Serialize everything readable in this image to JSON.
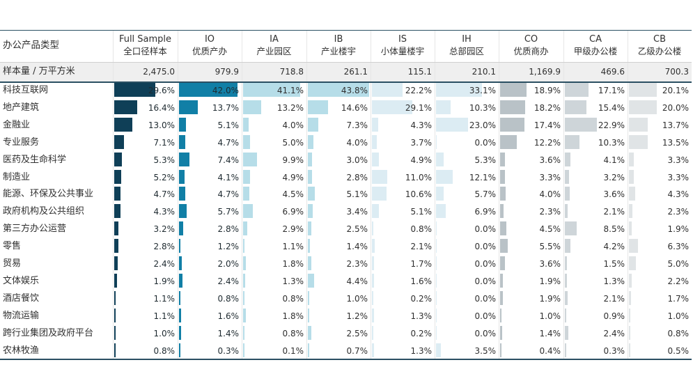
{
  "table": {
    "header": {
      "category_col": "办公产品类型",
      "sample_row_label": "样本量 / 万平方米"
    },
    "colors": {
      "Full Sample": "#0f3f57",
      "IO": "#117fa6",
      "IA": "#b6dde8",
      "IB": "#b6dde8",
      "IS": "#dcecf3",
      "IH": "#dcecf3",
      "CO": "#b9c2c7",
      "CA": "#ced5d9",
      "CB": "#e0e4e6",
      "line_dark": "#2a4f62",
      "sample_bg": "#efefef"
    },
    "columns": [
      {
        "code": "Full Sample",
        "name": "全口径样本",
        "sample": "2,475.0"
      },
      {
        "code": "IO",
        "name": "优质产办",
        "sample": "979.9"
      },
      {
        "code": "IA",
        "name": "产业园区",
        "sample": "718.8"
      },
      {
        "code": "IB",
        "name": "产业楼宇",
        "sample": "261.1"
      },
      {
        "code": "IS",
        "name": "小体量楼宇",
        "sample": "115.1"
      },
      {
        "code": "IH",
        "name": "总部园区",
        "sample": "210.1"
      },
      {
        "code": "CO",
        "name": "优质商办",
        "sample": "1,169.9"
      },
      {
        "code": "CA",
        "name": "甲级办公楼",
        "sample": "469.6"
      },
      {
        "code": "CB",
        "name": "乙级办公楼",
        "sample": "700.3"
      }
    ]
  },
  "chart_data": {
    "type": "table",
    "unit": "%",
    "categories": [
      "科技互联网",
      "地产建筑",
      "金融业",
      "专业服务",
      "医药及生命科学",
      "制造业",
      "能源、环保及公共事业",
      "政府机构及公共组织",
      "第三方办公运营",
      "零售",
      "贸易",
      "文体娱乐",
      "酒店餐饮",
      "物流运输",
      "跨行业集团及政府平台",
      "农林牧渔"
    ],
    "series": [
      {
        "name": "Full Sample",
        "values": [
          29.6,
          16.4,
          13.0,
          7.1,
          5.3,
          5.2,
          4.7,
          4.3,
          3.2,
          2.8,
          2.4,
          1.9,
          1.1,
          1.1,
          1.0,
          0.8
        ]
      },
      {
        "name": "IO",
        "values": [
          42.0,
          13.7,
          5.1,
          4.7,
          7.4,
          4.1,
          4.7,
          5.7,
          2.8,
          1.2,
          2.0,
          2.4,
          0.8,
          1.6,
          1.4,
          0.3
        ]
      },
      {
        "name": "IA",
        "values": [
          41.1,
          13.2,
          4.0,
          5.0,
          9.9,
          4.9,
          4.5,
          6.9,
          2.9,
          1.1,
          1.8,
          1.3,
          0.8,
          1.8,
          0.8,
          0.1
        ]
      },
      {
        "name": "IB",
        "values": [
          43.8,
          14.6,
          7.3,
          4.0,
          3.0,
          2.8,
          5.1,
          3.4,
          2.5,
          1.4,
          2.3,
          4.4,
          1.0,
          1.2,
          2.5,
          0.7
        ]
      },
      {
        "name": "IS",
        "values": [
          22.2,
          29.1,
          4.3,
          3.7,
          4.9,
          11.0,
          10.6,
          5.1,
          0.8,
          2.1,
          1.7,
          1.6,
          0.2,
          1.3,
          0.2,
          1.3
        ]
      },
      {
        "name": "IH",
        "values": [
          33.1,
          10.3,
          23.0,
          0.0,
          5.3,
          12.1,
          5.7,
          6.9,
          0.0,
          0.0,
          0.0,
          0.0,
          0.0,
          0.0,
          0.0,
          3.5
        ]
      },
      {
        "name": "CO",
        "values": [
          18.9,
          18.2,
          17.4,
          12.2,
          3.6,
          3.3,
          4.0,
          2.3,
          4.5,
          5.5,
          3.6,
          1.9,
          1.9,
          1.0,
          1.4,
          0.4
        ]
      },
      {
        "name": "CA",
        "values": [
          17.1,
          15.4,
          22.9,
          10.3,
          4.1,
          3.2,
          3.6,
          2.1,
          8.5,
          4.2,
          1.5,
          1.3,
          2.1,
          0.9,
          2.4,
          0.3
        ]
      },
      {
        "name": "CB",
        "values": [
          20.1,
          20.0,
          13.7,
          13.5,
          3.3,
          3.3,
          4.3,
          2.3,
          1.9,
          6.3,
          5.0,
          2.2,
          1.7,
          1.0,
          0.8,
          0.5
        ]
      }
    ]
  }
}
